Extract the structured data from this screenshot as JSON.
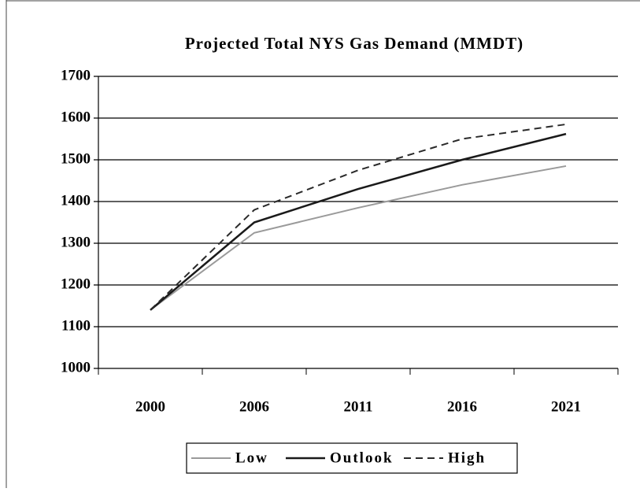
{
  "chart_data": {
    "type": "line",
    "title": "Projected Total NYS Gas Demand (MMDT)",
    "categories": [
      "2000",
      "2006",
      "2011",
      "2016",
      "2021"
    ],
    "series": [
      {
        "name": "Low",
        "color": "#9a9a9a",
        "dash": "solid",
        "values": [
          1140,
          1325,
          1385,
          1440,
          1485
        ]
      },
      {
        "name": "Outlook",
        "color": "#1a1a1a",
        "dash": "solid",
        "values": [
          1140,
          1350,
          1430,
          1500,
          1562
        ]
      },
      {
        "name": "High",
        "color": "#2a2a2a",
        "dash": "dashed",
        "values": [
          1140,
          1380,
          1475,
          1550,
          1585
        ]
      }
    ],
    "ylim": [
      1000,
      1700
    ],
    "yticks": [
      1000,
      1100,
      1200,
      1300,
      1400,
      1500,
      1600,
      1700
    ],
    "grid": true,
    "legend": "bottom"
  }
}
